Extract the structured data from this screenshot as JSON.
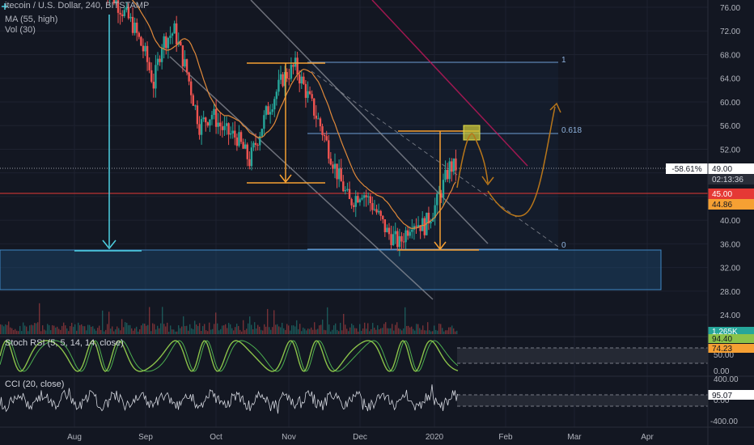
{
  "header": {
    "title_fragment": "itecoin / U.S. Dollar, 240, BITSTAMP",
    "ma_label": "MA (55, high)",
    "vol_label": "Vol (30)"
  },
  "price_axis": {
    "ticks": [
      "76.00",
      "72.00",
      "68.00",
      "64.00",
      "60.00",
      "56.00",
      "52.00",
      "48.00",
      "44.00",
      "40.00",
      "36.00",
      "32.00",
      "28.00",
      "24.00"
    ],
    "current_price": "49.00",
    "countdown": "02:13:36",
    "change_pct": "-58.61%",
    "red_level": "45.00",
    "ma_value": "44.86"
  },
  "fib": {
    "level_1": "1",
    "level_0618": "0.618",
    "level_0": "0"
  },
  "volume": {
    "value": "1.265K"
  },
  "stoch": {
    "label": "Stoch RSI (5, 5, 14, 14, close)",
    "ticks": [
      "100.00",
      "50.00",
      "0.00"
    ],
    "k": "94.40",
    "d": "74.23"
  },
  "cci": {
    "label": "CCI (20, close)",
    "ticks": [
      "400.00",
      "0.00",
      "-400.00"
    ],
    "value": "95.07"
  },
  "time_axis": {
    "labels": [
      "Aug",
      "Sep",
      "Oct",
      "Nov",
      "Dec",
      "2020",
      "Feb",
      "Mar",
      "Apr"
    ]
  },
  "colors": {
    "background": "#131722",
    "grid": "#1e2230",
    "up": "#26a69a",
    "down": "#ef5350",
    "ma": "#e0893a",
    "annotation_orange": "#f6a033",
    "zone_blue": "#1c4a72",
    "arrow_cyan": "#4dd0e1",
    "stoch_k": "#8bc34a",
    "stoch_d": "#4caf50",
    "cci_line": "#d1d4dc"
  },
  "chart_data": {
    "type": "candlestick",
    "symbol": "itecoin / U.S. Dollar",
    "interval": "240",
    "exchange": "BITSTAMP",
    "yaxis": {
      "range": [
        22,
        78
      ]
    },
    "price_path": [
      [
        0,
        80
      ],
      [
        8,
        76
      ],
      [
        14,
        73
      ],
      [
        20,
        68
      ],
      [
        24,
        63
      ],
      [
        28,
        70
      ],
      [
        34,
        72
      ],
      [
        40,
        65
      ],
      [
        46,
        56
      ],
      [
        52,
        58
      ],
      [
        58,
        55
      ],
      [
        64,
        54
      ],
      [
        70,
        50
      ],
      [
        78,
        58
      ],
      [
        86,
        64
      ],
      [
        92,
        66
      ],
      [
        98,
        61
      ],
      [
        104,
        56
      ],
      [
        112,
        48
      ],
      [
        118,
        43
      ],
      [
        124,
        45
      ],
      [
        130,
        42
      ],
      [
        136,
        38
      ],
      [
        142,
        36
      ],
      [
        148,
        40
      ],
      [
        154,
        39
      ],
      [
        160,
        43
      ],
      [
        166,
        49
      ]
    ],
    "annotations": {
      "horizontal_levels": [
        {
          "price": 45.0,
          "label": "45.00"
        },
        {
          "price": 49.0,
          "label": "49.00"
        }
      ],
      "fibonacci": [
        {
          "level": "1",
          "price": 66.5
        },
        {
          "level": "0.618",
          "price": 55.1
        },
        {
          "level": "0",
          "price": 35.9
        }
      ],
      "support_zone": [
        29,
        35.8
      ]
    }
  }
}
